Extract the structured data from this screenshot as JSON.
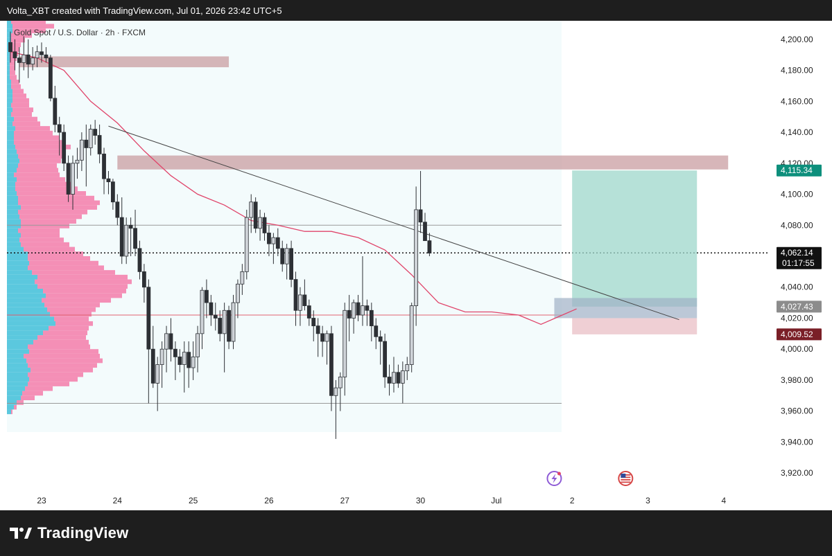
{
  "header": {
    "credit": "Volta_XBT created with TradingView.com, Jul 01, 2026 23:42 UTC+5"
  },
  "footer": {
    "brand": "TradingView"
  },
  "colors": {
    "bull": "#cfd3d8",
    "bear": "#2d3035",
    "sma": "#e0446a",
    "trend": "#444444",
    "profile_buy": "#5bc8de",
    "profile_sell": "#f48fb6",
    "supply_zone": "#c99ea2",
    "tp_zone": "#9ed7cb",
    "sl_zone": "#e9bfc5",
    "entry_zone": "#9fb0c6",
    "label_green": "#0d8f7c",
    "label_grey": "#8c8c8c",
    "label_red": "#7a1f27",
    "label_black": "#111111",
    "highlight_bg": "#f3fbfc"
  },
  "chart_data": {
    "type": "candlestick",
    "title": "Gold Spot / U.S. Dollar · 2h · FXCM",
    "symbol": "Gold Spot / U.S. Dollar",
    "timeframe": "2h",
    "source": "FXCM",
    "y_axis": {
      "ticks": [
        "3,920.00",
        "3,940.00",
        "3,960.00",
        "3,980.00",
        "4,000.00",
        "4,020.00",
        "4,040.00",
        "4,060.00",
        "4,080.00",
        "4,100.00",
        "4,120.00",
        "4,140.00",
        "4,160.00",
        "4,180.00",
        "4,200.00"
      ],
      "tick_values": [
        3920,
        3940,
        3960,
        3980,
        4000,
        4020,
        4040,
        4060,
        4080,
        4100,
        4120,
        4140,
        4160,
        4180,
        4200
      ],
      "range": [
        3908,
        4212
      ]
    },
    "x_axis": {
      "labels": [
        {
          "text": "23",
          "bar": 7
        },
        {
          "text": "24",
          "bar": 24
        },
        {
          "text": "25",
          "bar": 41
        },
        {
          "text": "26",
          "bar": 58
        },
        {
          "text": "27",
          "bar": 75
        },
        {
          "text": "30",
          "bar": 92
        },
        {
          "text": "Jul",
          "bar": 109
        },
        {
          "text": "2",
          "bar": 126
        },
        {
          "text": "3",
          "bar": 143
        },
        {
          "text": "4",
          "bar": 160
        }
      ]
    },
    "price_labels": [
      {
        "text": "4,115.34",
        "value": 4115.34,
        "color": "label_green"
      },
      {
        "text": "4,062.14",
        "value": 4062.14,
        "color": "label_black",
        "sub": "01:17:55"
      },
      {
        "text": "4,027.43",
        "value": 4027.43,
        "color": "label_grey"
      },
      {
        "text": "4,009.52",
        "value": 4009.52,
        "color": "label_red"
      }
    ],
    "horizontal_lines": [
      {
        "value": 4080,
        "color": "#999999",
        "style": "solid"
      },
      {
        "value": 4022,
        "color": "#e06070",
        "style": "solid"
      },
      {
        "value": 3965,
        "color": "#999999",
        "style": "solid"
      },
      {
        "value": 4062.14,
        "color": "#111111",
        "style": "dotted"
      }
    ],
    "zones": [
      {
        "name": "supply-zone-upper",
        "x0_bar": 2,
        "x1_bar": 49,
        "y0": 4182,
        "y1": 4189,
        "color": "supply_zone"
      },
      {
        "name": "supply-zone-mid",
        "x0_bar": 24,
        "x1_bar": 161,
        "y0": 4116,
        "y1": 4125,
        "color": "supply_zone"
      },
      {
        "name": "take-profit-zone",
        "x0_bar": 126,
        "x1_bar": 154,
        "y0": 4027.43,
        "y1": 4115.34,
        "color": "tp_zone"
      },
      {
        "name": "entry-zone",
        "x0_bar": 122,
        "x1_bar": 154,
        "y0": 4020,
        "y1": 4033,
        "color": "entry_zone"
      },
      {
        "name": "stop-loss-zone",
        "x0_bar": 126,
        "x1_bar": 154,
        "y0": 4009.52,
        "y1": 4020,
        "color": "sl_zone"
      }
    ],
    "trendline": {
      "from": {
        "bar": 22,
        "value": 4144
      },
      "to": {
        "bar": 150,
        "value": 4019
      }
    },
    "sma": [
      {
        "bar": 0,
        "value": 4192
      },
      {
        "bar": 6,
        "value": 4188
      },
      {
        "bar": 12,
        "value": 4180
      },
      {
        "bar": 18,
        "value": 4160
      },
      {
        "bar": 24,
        "value": 4146
      },
      {
        "bar": 30,
        "value": 4128
      },
      {
        "bar": 36,
        "value": 4112
      },
      {
        "bar": 42,
        "value": 4100
      },
      {
        "bar": 48,
        "value": 4093
      },
      {
        "bar": 54,
        "value": 4083
      },
      {
        "bar": 60,
        "value": 4080
      },
      {
        "bar": 66,
        "value": 4076
      },
      {
        "bar": 72,
        "value": 4076
      },
      {
        "bar": 78,
        "value": 4072
      },
      {
        "bar": 84,
        "value": 4064
      },
      {
        "bar": 90,
        "value": 4048
      },
      {
        "bar": 96,
        "value": 4030
      },
      {
        "bar": 102,
        "value": 4024
      },
      {
        "bar": 108,
        "value": 4024
      },
      {
        "bar": 114,
        "value": 4022
      },
      {
        "bar": 119,
        "value": 4016
      },
      {
        "bar": 123,
        "value": 4021
      },
      {
        "bar": 127,
        "value": 4026
      }
    ],
    "candles": [
      {
        "o": 4198,
        "h": 4205,
        "l": 4185,
        "c": 4192
      },
      {
        "o": 4192,
        "h": 4200,
        "l": 4180,
        "c": 4188
      },
      {
        "o": 4188,
        "h": 4195,
        "l": 4172,
        "c": 4185
      },
      {
        "o": 4185,
        "h": 4202,
        "l": 4180,
        "c": 4190
      },
      {
        "o": 4190,
        "h": 4200,
        "l": 4175,
        "c": 4184
      },
      {
        "o": 4184,
        "h": 4195,
        "l": 4180,
        "c": 4188
      },
      {
        "o": 4188,
        "h": 4196,
        "l": 4182,
        "c": 4192
      },
      {
        "o": 4192,
        "h": 4198,
        "l": 4185,
        "c": 4190
      },
      {
        "o": 4190,
        "h": 4195,
        "l": 4185,
        "c": 4188
      },
      {
        "o": 4188,
        "h": 4190,
        "l": 4160,
        "c": 4162
      },
      {
        "o": 4162,
        "h": 4170,
        "l": 4140,
        "c": 4145
      },
      {
        "o": 4145,
        "h": 4150,
        "l": 4125,
        "c": 4140
      },
      {
        "o": 4140,
        "h": 4145,
        "l": 4115,
        "c": 4120
      },
      {
        "o": 4120,
        "h": 4125,
        "l": 4095,
        "c": 4100
      },
      {
        "o": 4100,
        "h": 4125,
        "l": 4090,
        "c": 4120
      },
      {
        "o": 4120,
        "h": 4130,
        "l": 4110,
        "c": 4122
      },
      {
        "o": 4122,
        "h": 4140,
        "l": 4115,
        "c": 4135
      },
      {
        "o": 4135,
        "h": 4145,
        "l": 4105,
        "c": 4130
      },
      {
        "o": 4130,
        "h": 4145,
        "l": 4125,
        "c": 4142
      },
      {
        "o": 4142,
        "h": 4148,
        "l": 4132,
        "c": 4138
      },
      {
        "o": 4138,
        "h": 4145,
        "l": 4120,
        "c": 4126
      },
      {
        "o": 4126,
        "h": 4130,
        "l": 4100,
        "c": 4110
      },
      {
        "o": 4110,
        "h": 4115,
        "l": 4100,
        "c": 4108
      },
      {
        "o": 4108,
        "h": 4110,
        "l": 4090,
        "c": 4095
      },
      {
        "o": 4095,
        "h": 4100,
        "l": 4080,
        "c": 4085
      },
      {
        "o": 4085,
        "h": 4098,
        "l": 4055,
        "c": 4060
      },
      {
        "o": 4060,
        "h": 4085,
        "l": 4055,
        "c": 4080
      },
      {
        "o": 4080,
        "h": 4085,
        "l": 4060,
        "c": 4078
      },
      {
        "o": 4078,
        "h": 4090,
        "l": 4060,
        "c": 4065
      },
      {
        "o": 4065,
        "h": 4070,
        "l": 4045,
        "c": 4050
      },
      {
        "o": 4050,
        "h": 4055,
        "l": 4030,
        "c": 4040
      },
      {
        "o": 4040,
        "h": 4045,
        "l": 3965,
        "c": 4000
      },
      {
        "o": 4000,
        "h": 4015,
        "l": 3975,
        "c": 3978
      },
      {
        "o": 3978,
        "h": 3995,
        "l": 3960,
        "c": 3990
      },
      {
        "o": 3990,
        "h": 4005,
        "l": 3975,
        "c": 4000
      },
      {
        "o": 4000,
        "h": 4015,
        "l": 3985,
        "c": 4010
      },
      {
        "o": 4010,
        "h": 4020,
        "l": 3992,
        "c": 4000
      },
      {
        "o": 4000,
        "h": 4005,
        "l": 3980,
        "c": 3995
      },
      {
        "o": 3995,
        "h": 4000,
        "l": 3985,
        "c": 3990
      },
      {
        "o": 3990,
        "h": 4005,
        "l": 3972,
        "c": 3998
      },
      {
        "o": 3998,
        "h": 4005,
        "l": 3975,
        "c": 3988
      },
      {
        "o": 3988,
        "h": 4005,
        "l": 3980,
        "c": 3995
      },
      {
        "o": 3995,
        "h": 4015,
        "l": 3985,
        "c": 4010
      },
      {
        "o": 4010,
        "h": 4040,
        "l": 4000,
        "c": 4038
      },
      {
        "o": 4038,
        "h": 4045,
        "l": 4020,
        "c": 4030
      },
      {
        "o": 4030,
        "h": 4035,
        "l": 4015,
        "c": 4022
      },
      {
        "o": 4022,
        "h": 4030,
        "l": 4012,
        "c": 4020
      },
      {
        "o": 4020,
        "h": 4025,
        "l": 4005,
        "c": 4010
      },
      {
        "o": 4010,
        "h": 4030,
        "l": 3985,
        "c": 4025
      },
      {
        "o": 4025,
        "h": 4028,
        "l": 4000,
        "c": 4005
      },
      {
        "o": 4005,
        "h": 4035,
        "l": 4000,
        "c": 4030
      },
      {
        "o": 4030,
        "h": 4045,
        "l": 4020,
        "c": 4042
      },
      {
        "o": 4042,
        "h": 4055,
        "l": 4035,
        "c": 4050
      },
      {
        "o": 4050,
        "h": 4090,
        "l": 4045,
        "c": 4085
      },
      {
        "o": 4085,
        "h": 4100,
        "l": 4075,
        "c": 4095
      },
      {
        "o": 4095,
        "h": 4098,
        "l": 4075,
        "c": 4078
      },
      {
        "o": 4078,
        "h": 4090,
        "l": 4070,
        "c": 4085
      },
      {
        "o": 4085,
        "h": 4088,
        "l": 4070,
        "c": 4075
      },
      {
        "o": 4075,
        "h": 4080,
        "l": 4060,
        "c": 4068
      },
      {
        "o": 4068,
        "h": 4075,
        "l": 4055,
        "c": 4072
      },
      {
        "o": 4072,
        "h": 4078,
        "l": 4060,
        "c": 4065
      },
      {
        "o": 4065,
        "h": 4070,
        "l": 4050,
        "c": 4055
      },
      {
        "o": 4055,
        "h": 4068,
        "l": 4045,
        "c": 4065
      },
      {
        "o": 4065,
        "h": 4070,
        "l": 4040,
        "c": 4045
      },
      {
        "o": 4045,
        "h": 4050,
        "l": 4015,
        "c": 4025
      },
      {
        "o": 4025,
        "h": 4040,
        "l": 4015,
        "c": 4035
      },
      {
        "o": 4035,
        "h": 4045,
        "l": 4025,
        "c": 4028
      },
      {
        "o": 4028,
        "h": 4032,
        "l": 4015,
        "c": 4020
      },
      {
        "o": 4020,
        "h": 4025,
        "l": 4005,
        "c": 4015
      },
      {
        "o": 4015,
        "h": 4020,
        "l": 3995,
        "c": 4010
      },
      {
        "o": 4010,
        "h": 4015,
        "l": 3995,
        "c": 4005
      },
      {
        "o": 4005,
        "h": 4012,
        "l": 3990,
        "c": 4010
      },
      {
        "o": 4010,
        "h": 4015,
        "l": 3960,
        "c": 3970
      },
      {
        "o": 3970,
        "h": 3980,
        "l": 3942,
        "c": 3975
      },
      {
        "o": 3975,
        "h": 3985,
        "l": 3960,
        "c": 3982
      },
      {
        "o": 3982,
        "h": 4030,
        "l": 3970,
        "c": 4025
      },
      {
        "o": 4025,
        "h": 4035,
        "l": 4005,
        "c": 4020
      },
      {
        "o": 4020,
        "h": 4032,
        "l": 4010,
        "c": 4030
      },
      {
        "o": 4030,
        "h": 4035,
        "l": 4018,
        "c": 4022
      },
      {
        "o": 4022,
        "h": 4060,
        "l": 4015,
        "c": 4028
      },
      {
        "o": 4028,
        "h": 4032,
        "l": 4015,
        "c": 4025
      },
      {
        "o": 4025,
        "h": 4030,
        "l": 4005,
        "c": 4015
      },
      {
        "o": 4015,
        "h": 4020,
        "l": 4000,
        "c": 4008
      },
      {
        "o": 4008,
        "h": 4012,
        "l": 3990,
        "c": 4005
      },
      {
        "o": 4005,
        "h": 4010,
        "l": 3975,
        "c": 3982
      },
      {
        "o": 3982,
        "h": 3990,
        "l": 3970,
        "c": 3978
      },
      {
        "o": 3978,
        "h": 3995,
        "l": 3972,
        "c": 3985
      },
      {
        "o": 3985,
        "h": 3990,
        "l": 3975,
        "c": 3978
      },
      {
        "o": 3978,
        "h": 3992,
        "l": 3965,
        "c": 3986
      },
      {
        "o": 3986,
        "h": 3995,
        "l": 3980,
        "c": 3990
      },
      {
        "o": 3990,
        "h": 4030,
        "l": 3985,
        "c": 4028
      },
      {
        "o": 4028,
        "h": 4105,
        "l": 4015,
        "c": 4090
      },
      {
        "o": 4090,
        "h": 4115,
        "l": 4075,
        "c": 4082
      },
      {
        "o": 4082,
        "h": 4088,
        "l": 4070,
        "c": 4070
      },
      {
        "o": 4070,
        "h": 4075,
        "l": 4060,
        "c": 4062
      }
    ],
    "volume_profile": {
      "range": [
        3958,
        4210
      ],
      "bin": 3,
      "scale": 130,
      "buy": [
        6,
        10,
        14,
        20,
        22,
        26,
        30,
        32,
        30,
        34,
        30,
        28,
        24,
        32,
        30,
        38,
        44,
        52,
        60,
        70,
        68,
        62,
        58,
        54,
        50,
        56,
        52,
        44,
        40,
        44,
        36,
        30,
        32,
        30,
        30,
        24,
        20,
        18,
        20,
        16,
        20,
        20,
        18,
        16,
        20,
        16,
        16,
        14,
        12,
        12,
        14,
        10,
        14,
        16,
        18,
        16,
        14,
        12,
        10,
        10,
        10,
        12,
        8,
        10,
        6,
        8,
        6,
        8,
        8,
        8,
        6,
        6,
        4,
        4,
        4,
        4,
        4,
        4,
        4,
        4,
        6,
        6,
        8,
        8,
        6,
        4
      ],
      "sell": [
        2,
        4,
        10,
        20,
        30,
        40,
        60,
        70,
        80,
        90,
        100,
        110,
        110,
        100,
        90,
        80,
        70,
        64,
        58,
        54,
        50,
        60,
        70,
        80,
        100,
        110,
        120,
        130,
        140,
        130,
        120,
        110,
        100,
        90,
        80,
        74,
        70,
        64,
        56,
        60,
        70,
        80,
        90,
        100,
        110,
        118,
        110,
        100,
        90,
        80,
        70,
        66,
        60,
        56,
        60,
        64,
        70,
        80,
        74,
        66,
        56,
        50,
        40,
        34,
        30,
        30,
        26,
        24,
        20,
        16,
        14,
        12,
        10,
        8,
        8,
        8,
        10,
        12,
        14,
        16,
        20,
        30,
        48,
        60,
        50,
        30
      ]
    },
    "event_icons": [
      {
        "name": "lightning-event-icon",
        "bar": 122
      },
      {
        "name": "us-flag-event-icon",
        "bar": 138
      }
    ]
  }
}
